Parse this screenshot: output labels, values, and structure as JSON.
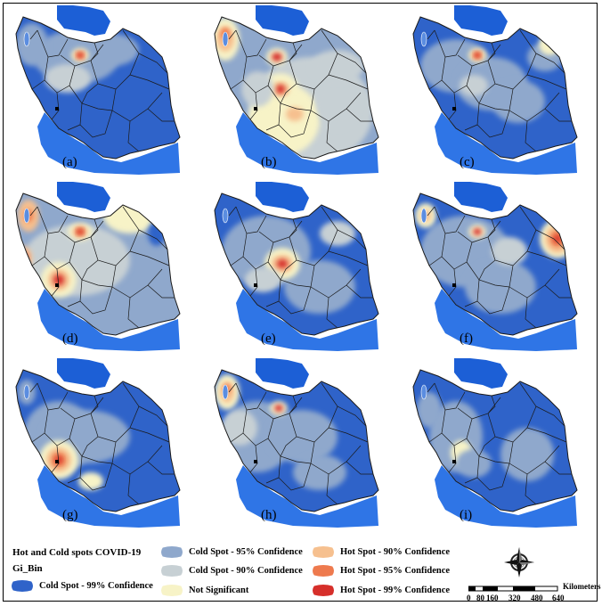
{
  "panels": [
    {
      "label": "(a)"
    },
    {
      "label": "(b)"
    },
    {
      "label": "(c)"
    },
    {
      "label": "(d)"
    },
    {
      "label": "(e)"
    },
    {
      "label": "(f)"
    },
    {
      "label": "(g)"
    },
    {
      "label": "(h)"
    },
    {
      "label": "(i)"
    }
  ],
  "legend": {
    "title_line1": "Hot and Cold spots COVID-19",
    "title_line2": "Gi_Bin",
    "items": [
      {
        "label": "Cold Spot - 99% Confidence",
        "color": "#2f63c9"
      },
      {
        "label": "Cold Spot - 95% Confidence",
        "color": "#8fa8cc"
      },
      {
        "label": "Cold Spot - 90% Confidence",
        "color": "#c7d0d4"
      },
      {
        "label": "Not Significant",
        "color": "#f7f3c7"
      },
      {
        "label": "Hot Spot - 90% Confidence",
        "color": "#f6c08f"
      },
      {
        "label": "Hot Spot - 95% Confidence",
        "color": "#ee7a4e"
      },
      {
        "label": "Hot Spot - 99% Confidence",
        "color": "#d62f2a"
      }
    ]
  },
  "scale_bar": {
    "unit": "Kilometers",
    "ticks": [
      "0",
      "80",
      "160",
      "320",
      "480",
      "640"
    ]
  },
  "colors": {
    "caspian": "#1c5fd6",
    "gulf": "#2f75e6",
    "border": "#1a1a1a"
  },
  "icons": {
    "compass": "north-arrow-compass-icon"
  }
}
